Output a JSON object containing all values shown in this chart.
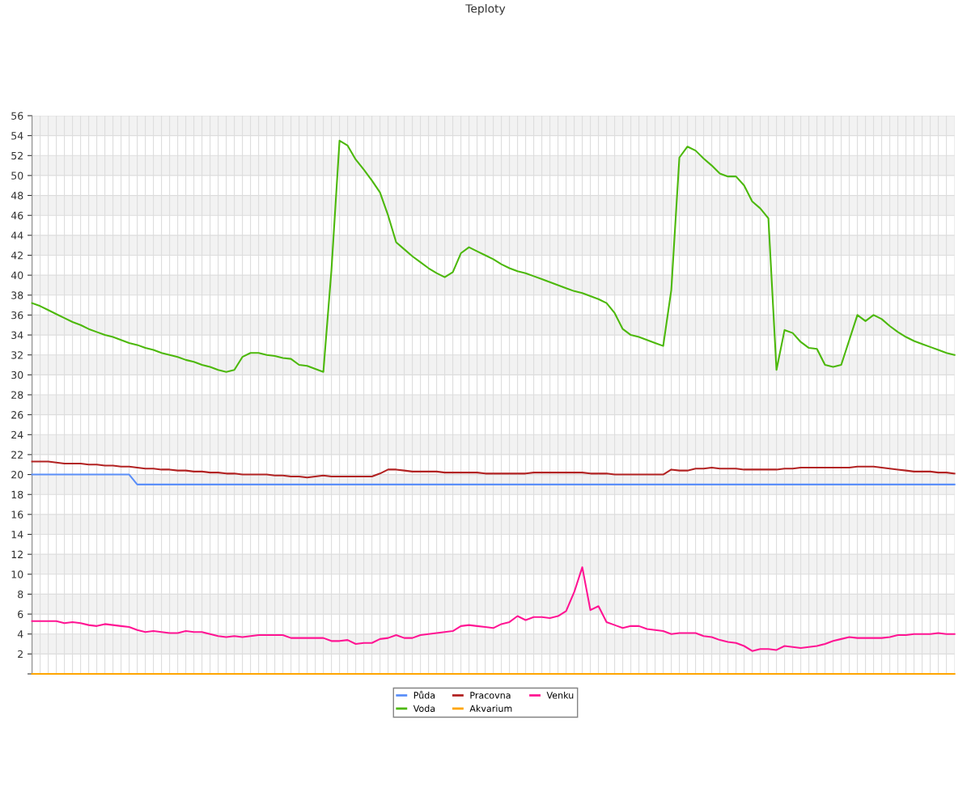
{
  "chart_data": {
    "type": "line",
    "title": "Teploty",
    "categories": [
      null,
      null,
      null,
      null,
      null,
      null,
      null,
      null,
      null,
      null,
      null,
      null,
      null,
      null,
      null,
      null,
      null,
      null,
      null,
      null,
      null,
      null,
      null,
      null,
      null,
      null,
      null,
      null,
      null,
      null,
      null,
      null,
      null,
      null,
      null,
      null,
      null,
      null,
      null,
      null,
      null,
      null,
      null,
      null,
      null,
      null,
      null,
      null,
      null,
      null,
      null,
      null,
      null,
      null,
      null,
      null,
      null,
      null,
      null,
      null,
      null,
      null,
      null,
      null,
      null,
      null,
      null,
      null,
      null,
      null,
      null,
      null,
      null,
      null,
      null,
      null,
      null,
      null,
      null,
      null,
      null,
      null,
      null,
      null,
      null,
      null,
      null,
      null,
      null,
      null,
      null,
      null,
      null,
      null,
      null,
      null,
      null,
      null,
      null,
      null,
      null,
      null,
      null,
      null,
      null,
      null,
      null,
      null,
      null,
      null,
      null,
      null,
      null,
      null,
      null
    ],
    "series": [
      {
        "name": "Půda",
        "color": "#5b8ff9",
        "values": [
          20,
          20,
          20,
          20,
          20,
          20,
          20,
          20,
          20,
          20,
          20,
          20,
          20,
          19,
          19,
          19,
          19,
          19,
          19,
          19,
          19,
          19,
          19,
          19,
          19,
          19,
          19,
          19,
          19,
          19,
          19,
          19,
          19,
          19,
          19,
          19,
          19,
          19,
          19,
          19,
          19,
          19,
          19,
          19,
          19,
          19,
          19,
          19,
          19,
          19,
          19,
          19,
          19,
          19,
          19,
          19,
          19,
          19,
          19,
          19,
          19,
          19,
          19,
          19,
          19,
          19,
          19,
          19,
          19,
          19,
          19,
          19,
          19,
          19,
          19,
          19,
          19,
          19,
          19,
          19,
          19,
          19,
          19,
          19,
          19,
          19,
          19,
          19,
          19,
          19,
          19,
          19,
          19,
          19,
          19,
          19,
          19,
          19,
          19,
          19,
          19,
          19,
          19,
          19,
          19,
          19,
          19,
          19,
          19,
          19,
          19,
          19,
          19,
          19,
          19
        ]
      },
      {
        "name": "Voda",
        "color": "#4cb80a",
        "values": [
          37.2,
          36.9,
          36.5,
          36.1,
          35.7,
          35.3,
          35.0,
          34.6,
          34.3,
          34.0,
          33.8,
          33.5,
          33.2,
          33.0,
          32.7,
          32.5,
          32.2,
          32.0,
          31.8,
          31.5,
          31.3,
          31.0,
          30.8,
          30.5,
          30.3,
          30.5,
          31.8,
          32.2,
          32.2,
          32.0,
          31.9,
          31.7,
          31.6,
          31.0,
          30.9,
          30.6,
          30.3,
          40.5,
          53.5,
          53.0,
          51.6,
          50.6,
          49.5,
          48.3,
          46.0,
          43.3,
          42.6,
          41.9,
          41.3,
          40.7,
          40.2,
          39.8,
          40.3,
          42.2,
          42.8,
          42.4,
          42.0,
          41.6,
          41.1,
          40.7,
          40.4,
          40.2,
          39.9,
          39.6,
          39.3,
          39.0,
          38.7,
          38.4,
          38.2,
          37.9,
          37.6,
          37.2,
          36.2,
          34.6,
          34.0,
          33.8,
          33.5,
          33.2,
          32.9,
          38.5,
          51.8,
          52.9,
          52.5,
          51.7,
          51.0,
          50.2,
          49.9,
          49.9,
          49.0,
          47.4,
          46.7,
          45.7,
          30.5,
          34.5,
          34.2,
          33.3,
          32.7,
          32.6,
          31.0,
          30.8,
          31.0,
          33.5,
          36.0,
          35.4,
          36.0,
          35.6,
          34.9,
          34.3,
          33.8,
          33.4,
          33.1,
          32.8,
          32.5,
          32.2,
          32.0
        ]
      },
      {
        "name": "Pracovna",
        "color": "#b22222",
        "values": [
          21.3,
          21.3,
          21.3,
          21.2,
          21.1,
          21.1,
          21.1,
          21.0,
          21.0,
          20.9,
          20.9,
          20.8,
          20.8,
          20.7,
          20.6,
          20.6,
          20.5,
          20.5,
          20.4,
          20.4,
          20.3,
          20.3,
          20.2,
          20.2,
          20.1,
          20.1,
          20.0,
          20.0,
          20.0,
          20.0,
          19.9,
          19.9,
          19.8,
          19.8,
          19.7,
          19.8,
          19.9,
          19.8,
          19.8,
          19.8,
          19.8,
          19.8,
          19.8,
          20.1,
          20.5,
          20.5,
          20.4,
          20.3,
          20.3,
          20.3,
          20.3,
          20.2,
          20.2,
          20.2,
          20.2,
          20.2,
          20.1,
          20.1,
          20.1,
          20.1,
          20.1,
          20.1,
          20.2,
          20.2,
          20.2,
          20.2,
          20.2,
          20.2,
          20.2,
          20.1,
          20.1,
          20.1,
          20.0,
          20.0,
          20.0,
          20.0,
          20.0,
          20.0,
          20.0,
          20.5,
          20.4,
          20.4,
          20.6,
          20.6,
          20.7,
          20.6,
          20.6,
          20.6,
          20.5,
          20.5,
          20.5,
          20.5,
          20.5,
          20.6,
          20.6,
          20.7,
          20.7,
          20.7,
          20.7,
          20.7,
          20.7,
          20.7,
          20.8,
          20.8,
          20.8,
          20.7,
          20.6,
          20.5,
          20.4,
          20.3,
          20.3,
          20.3,
          20.2,
          20.2,
          20.1
        ]
      },
      {
        "name": "Akvarium",
        "color": "#ffa500",
        "values": [
          0,
          0,
          0,
          0,
          0,
          0,
          0,
          0,
          0,
          0,
          0,
          0,
          0,
          0,
          0,
          0,
          0,
          0,
          0,
          0,
          0,
          0,
          0,
          0,
          0,
          0,
          0,
          0,
          0,
          0,
          0,
          0,
          0,
          0,
          0,
          0,
          0,
          0,
          0,
          0,
          0,
          0,
          0,
          0,
          0,
          0,
          0,
          0,
          0,
          0,
          0,
          0,
          0,
          0,
          0,
          0,
          0,
          0,
          0,
          0,
          0,
          0,
          0,
          0,
          0,
          0,
          0,
          0,
          0,
          0,
          0,
          0,
          0,
          0,
          0,
          0,
          0,
          0,
          0,
          0,
          0,
          0,
          0,
          0,
          0,
          0,
          0,
          0,
          0,
          0,
          0,
          0,
          0,
          0,
          0,
          0,
          0,
          0,
          0,
          0,
          0,
          0,
          0,
          0,
          0,
          0,
          0,
          0,
          0,
          0,
          0,
          0,
          0,
          0,
          0
        ]
      },
      {
        "name": "Venku",
        "color": "#ff1493",
        "values": [
          5.3,
          5.3,
          5.3,
          5.3,
          5.1,
          5.2,
          5.1,
          4.9,
          4.8,
          5.0,
          4.9,
          4.8,
          4.7,
          4.4,
          4.2,
          4.3,
          4.2,
          4.1,
          4.1,
          4.3,
          4.2,
          4.2,
          4.0,
          3.8,
          3.7,
          3.8,
          3.7,
          3.8,
          3.9,
          3.9,
          3.9,
          3.9,
          3.6,
          3.6,
          3.6,
          3.6,
          3.6,
          3.3,
          3.3,
          3.4,
          3.0,
          3.1,
          3.1,
          3.5,
          3.6,
          3.9,
          3.6,
          3.6,
          3.9,
          4.0,
          4.1,
          4.2,
          4.3,
          4.8,
          4.9,
          4.8,
          4.7,
          4.6,
          5.0,
          5.2,
          5.8,
          5.4,
          5.7,
          5.7,
          5.6,
          5.8,
          6.3,
          8.2,
          10.7,
          6.4,
          6.8,
          5.2,
          4.9,
          4.6,
          4.8,
          4.8,
          4.5,
          4.4,
          4.3,
          4.0,
          4.1,
          4.1,
          4.1,
          3.8,
          3.7,
          3.4,
          3.2,
          3.1,
          2.8,
          2.3,
          2.5,
          2.5,
          2.4,
          2.8,
          2.7,
          2.6,
          2.7,
          2.8,
          3.0,
          3.3,
          3.5,
          3.7,
          3.6,
          3.6,
          3.6,
          3.6,
          3.7,
          3.9,
          3.9,
          4.0,
          4.0,
          4.0,
          4.1,
          4.0,
          4.0
        ]
      }
    ],
    "ylim": [
      0,
      56
    ],
    "yticks": [
      {
        "value": 0,
        "label": null
      },
      2,
      4,
      6,
      8,
      10,
      12,
      14,
      16,
      18,
      20,
      22,
      24,
      26,
      28,
      30,
      32,
      34,
      36,
      38,
      40,
      42,
      44,
      46,
      48,
      50,
      52,
      54,
      56
    ],
    "grid": true,
    "legend": "bottom",
    "marker": "none",
    "line_style": "solid"
  }
}
